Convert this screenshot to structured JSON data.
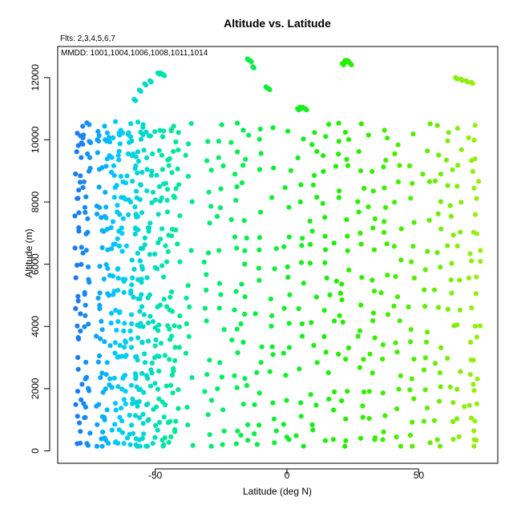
{
  "chart_data": {
    "type": "scatter",
    "title": "Altitude vs. Latitude",
    "subtitle_flts": "Flts: 2,3,4,5,6,7",
    "subtitle_mmdd": "MMDD: 1001,1004,1006,1008,1011,1014",
    "xlabel": "Latitude (deg N)",
    "ylabel": "Altitude (m)",
    "xlim": [
      -87,
      80
    ],
    "ylim": [
      -400,
      13000
    ],
    "xticks": [
      -50,
      0,
      50
    ],
    "yticks": [
      0,
      2000,
      4000,
      6000,
      8000,
      10000,
      12000
    ],
    "color_scale": {
      "by": "latitude",
      "stops": [
        {
          "lat": -80,
          "color": "#1E78F0"
        },
        {
          "lat": -65,
          "color": "#00C8FF"
        },
        {
          "lat": -45,
          "color": "#00E6A0"
        },
        {
          "lat": -20,
          "color": "#00EE55"
        },
        {
          "lat": 20,
          "color": "#22EE00"
        },
        {
          "lat": 50,
          "color": "#55EE00"
        },
        {
          "lat": 72,
          "color": "#99EE11"
        }
      ]
    },
    "legend": "none",
    "grid": false,
    "profile_columns_lat": [
      -79,
      -76,
      -71,
      -68,
      -65,
      -63,
      -60,
      -58,
      -56,
      -54,
      -51,
      -48,
      -45,
      -42,
      -37,
      -30,
      -25,
      -20,
      -16,
      -11,
      -5,
      0,
      5,
      10,
      15,
      19,
      22,
      28,
      32,
      37,
      42,
      47,
      53,
      57,
      62,
      66,
      70,
      72
    ],
    "level_altitudes_m": [
      180,
      500,
      1000,
      1500,
      2000,
      2500,
      3000,
      3500,
      4000,
      4500,
      5000,
      5500,
      6000,
      6500,
      7000,
      7500,
      8000,
      8500,
      9000,
      9500,
      10000,
      10400
    ],
    "high_segments": [
      {
        "lat": [
          -78,
          -75,
          -72,
          -69
        ],
        "alt": [
          9900,
          9950,
          10000,
          10000
        ]
      },
      {
        "lat": [
          -58,
          -56,
          -54,
          -52
        ],
        "alt": [
          11300,
          11600,
          11800,
          11900
        ]
      },
      {
        "lat": [
          -49,
          -48,
          -47
        ],
        "alt": [
          12150,
          12150,
          12100
        ]
      },
      {
        "lat": [
          -15,
          -14,
          -13
        ],
        "alt": [
          12600,
          12550,
          12350
        ]
      },
      {
        "lat": [
          -8,
          -7
        ],
        "alt": [
          11700,
          11650
        ]
      },
      {
        "lat": [
          4,
          5,
          6,
          7
        ],
        "alt": [
          11000,
          11050,
          11050,
          11000
        ]
      },
      {
        "lat": [
          21,
          22,
          23,
          24
        ],
        "alt": [
          12450,
          12550,
          12550,
          12450
        ]
      },
      {
        "lat": [
          64,
          66,
          68,
          70
        ],
        "alt": [
          12000,
          11950,
          11900,
          11850
        ]
      }
    ]
  }
}
